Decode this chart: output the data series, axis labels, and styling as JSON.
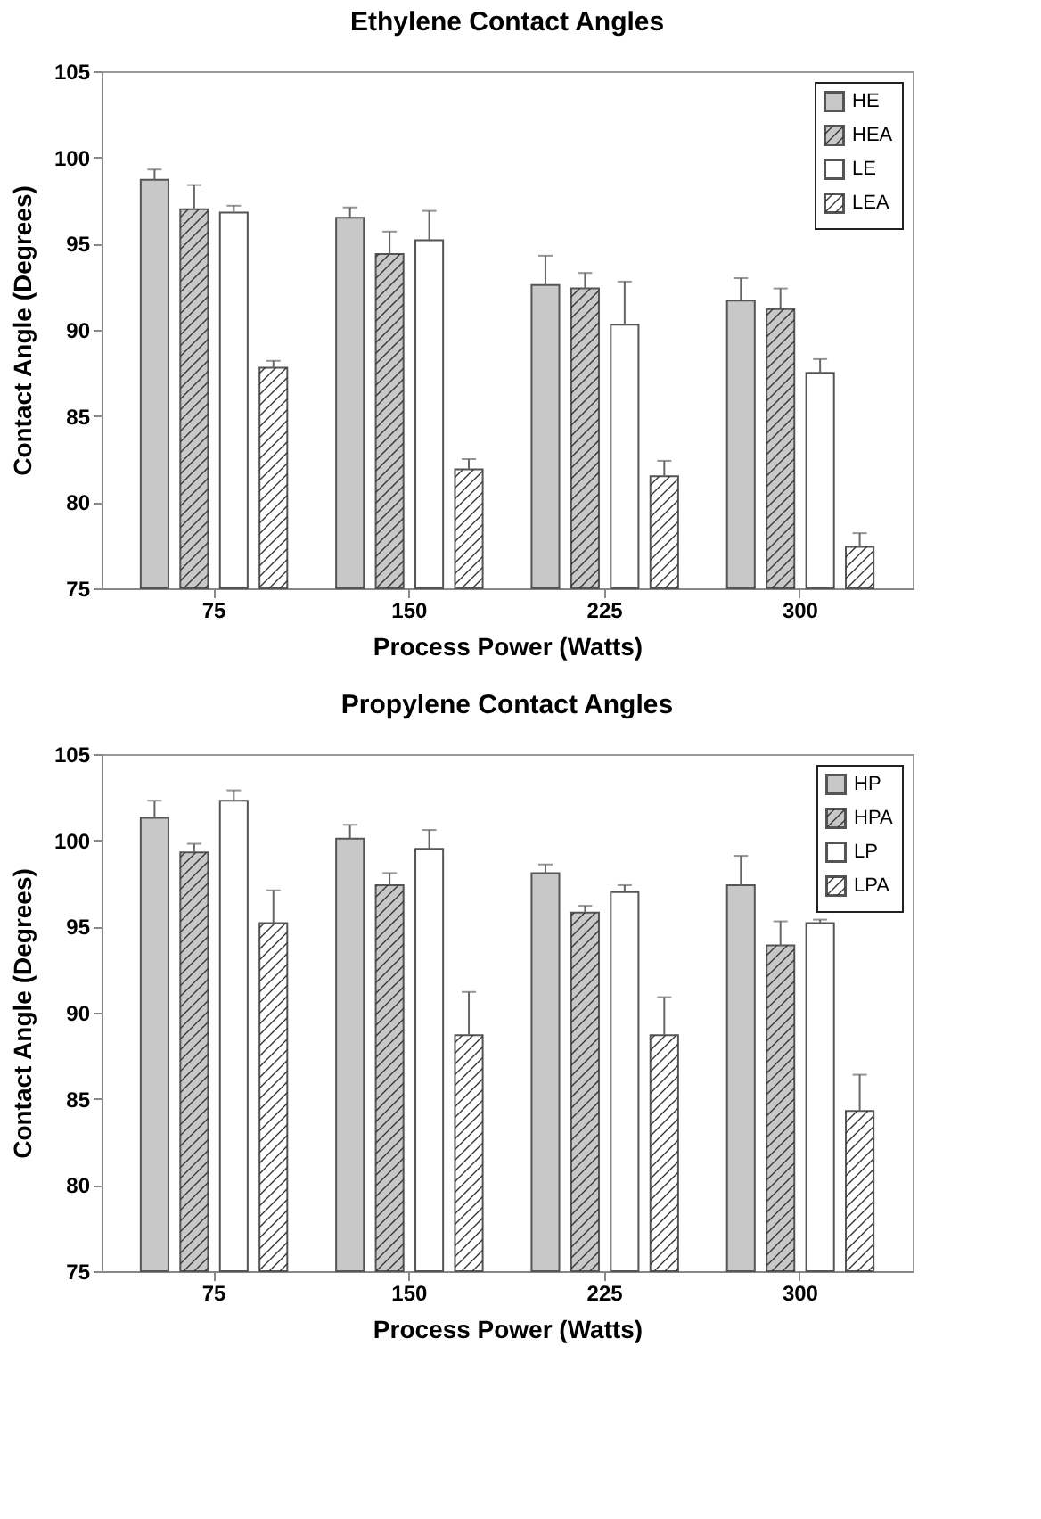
{
  "chart_data": [
    {
      "type": "bar",
      "title": "Ethylene Contact Angles",
      "xlabel": "Process Power (Watts)",
      "ylabel": "Contact Angle (Degrees)",
      "categories": [
        "75",
        "150",
        "225",
        "300"
      ],
      "ylim": [
        75,
        105
      ],
      "yticks": [
        75,
        80,
        85,
        90,
        95,
        100,
        105
      ],
      "legend": "top right",
      "series": [
        {
          "name": "HE",
          "color": "#c8c8c8",
          "values": [
            98.7,
            96.5,
            92.6,
            91.7
          ],
          "errors": [
            [
              98.7,
              99.3
            ],
            [
              96.5,
              97.1
            ],
            [
              92.6,
              94.3
            ],
            [
              91.7,
              93.0
            ]
          ]
        },
        {
          "name": "HEA",
          "color": "#c8c8c8",
          "values": [
            97.0,
            94.4,
            92.4,
            91.2
          ],
          "errors": [
            [
              97.0,
              98.4
            ],
            [
              94.4,
              95.7
            ],
            [
              92.4,
              93.3
            ],
            [
              91.2,
              92.4
            ]
          ]
        },
        {
          "name": "LE",
          "color": "#ffffff",
          "values": [
            96.8,
            95.2,
            90.3,
            87.5
          ],
          "errors": [
            [
              96.8,
              97.2
            ],
            [
              95.2,
              96.9
            ],
            [
              90.3,
              92.8
            ],
            [
              87.5,
              88.3
            ]
          ]
        },
        {
          "name": "LEA",
          "color": "#ffffff",
          "values": [
            87.8,
            81.9,
            81.5,
            77.4
          ],
          "errors": [
            [
              87.8,
              88.2
            ],
            [
              81.9,
              82.5
            ],
            [
              81.5,
              82.4
            ],
            [
              77.4,
              78.2
            ]
          ]
        }
      ]
    },
    {
      "type": "bar",
      "title": "Propylene Contact Angles",
      "xlabel": "Process Power (Watts)",
      "ylabel": "Contact Angle (Degrees)",
      "categories": [
        "75",
        "150",
        "225",
        "300"
      ],
      "ylim": [
        75,
        105
      ],
      "yticks": [
        75,
        80,
        85,
        90,
        95,
        100,
        105
      ],
      "legend": "top right",
      "series": [
        {
          "name": "HP",
          "color": "#c8c8c8",
          "values": [
            101.3,
            100.1,
            98.1,
            97.4
          ],
          "errors": [
            [
              101.3,
              102.3
            ],
            [
              100.1,
              100.9
            ],
            [
              98.1,
              98.6
            ],
            [
              97.4,
              99.1
            ]
          ]
        },
        {
          "name": "HPA",
          "color": "#c8c8c8",
          "values": [
            99.3,
            97.4,
            95.8,
            93.9
          ],
          "errors": [
            [
              99.3,
              99.8
            ],
            [
              97.4,
              98.1
            ],
            [
              95.8,
              96.2
            ],
            [
              93.9,
              95.3
            ]
          ]
        },
        {
          "name": "LP",
          "color": "#ffffff",
          "values": [
            102.3,
            99.5,
            97.0,
            95.2
          ],
          "errors": [
            [
              102.3,
              102.9
            ],
            [
              99.5,
              100.6
            ],
            [
              97.0,
              97.4
            ],
            [
              95.2,
              95.4
            ]
          ]
        },
        {
          "name": "LPA",
          "color": "#ffffff",
          "values": [
            95.2,
            88.7,
            88.7,
            84.3
          ],
          "errors": [
            [
              95.2,
              97.1
            ],
            [
              88.7,
              91.2
            ],
            [
              88.7,
              90.9
            ],
            [
              84.3,
              86.4
            ]
          ]
        }
      ]
    }
  ]
}
